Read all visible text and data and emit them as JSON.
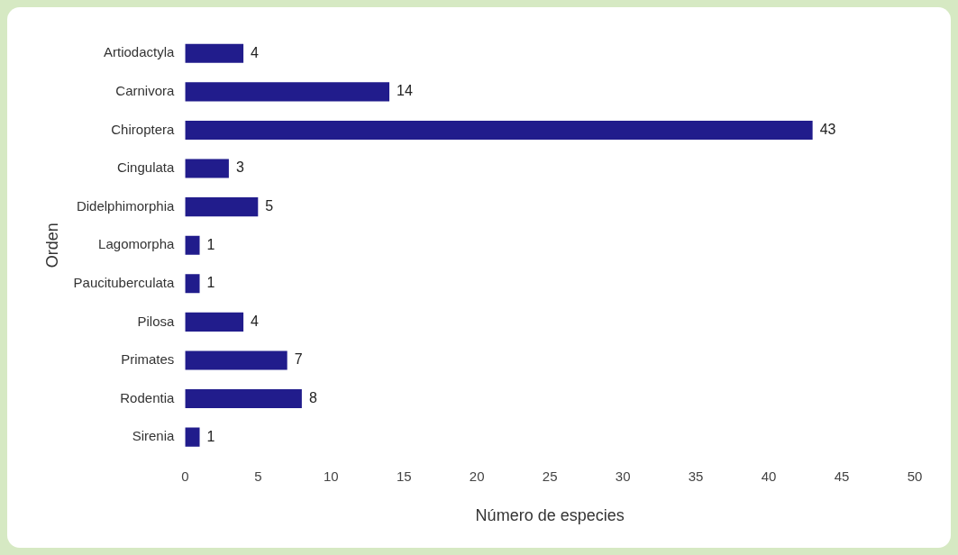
{
  "chart_data": {
    "type": "bar",
    "orientation": "horizontal",
    "xlabel": "Número de especies",
    "ylabel": "Orden",
    "categories": [
      "Artiodactyla",
      "Carnivora",
      "Chiroptera",
      "Cingulata",
      "Didelphimorphia",
      "Lagomorpha",
      "Paucituberculata",
      "Pilosa",
      "Primates",
      "Rodentia",
      "Sirenia"
    ],
    "values": [
      4,
      14,
      43,
      3,
      5,
      1,
      1,
      4,
      7,
      8,
      1
    ],
    "color": "#211c8c",
    "xlim": [
      0,
      50
    ],
    "xticks": [
      0,
      5,
      10,
      15,
      20,
      25,
      30,
      35,
      40,
      45,
      50
    ],
    "data_labels": true,
    "grid": false,
    "legend": false
  }
}
